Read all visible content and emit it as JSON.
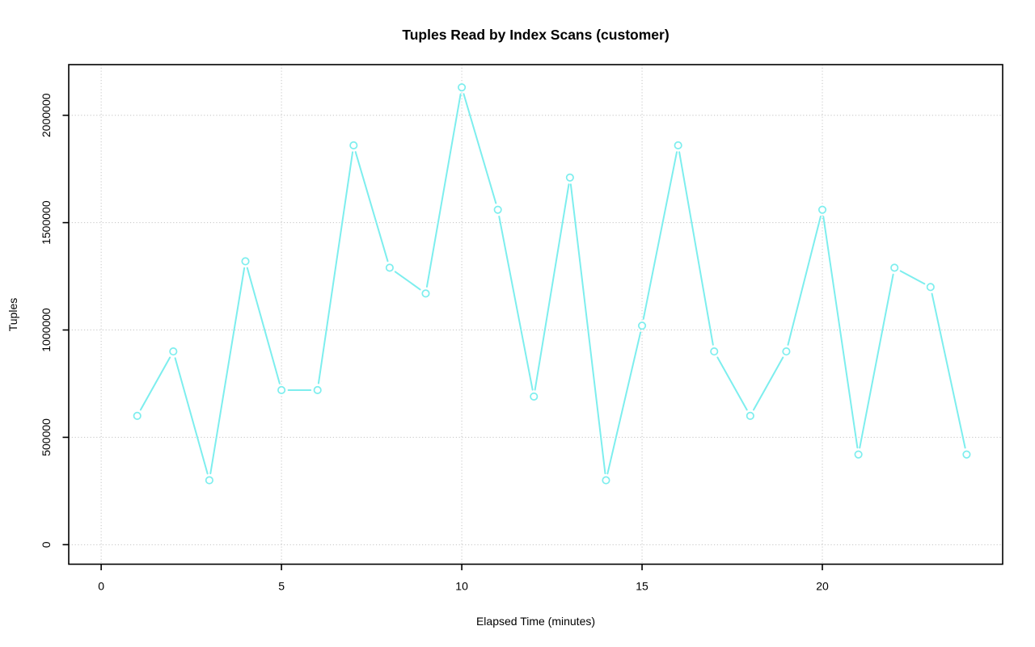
{
  "chart_data": {
    "type": "line",
    "title": "Tuples Read by Index Scans (customer)",
    "xlabel": "Elapsed Time (minutes)",
    "ylabel": "Tuples",
    "x": [
      1,
      2,
      3,
      4,
      5,
      6,
      7,
      8,
      9,
      10,
      11,
      12,
      13,
      14,
      15,
      16,
      17,
      18,
      19,
      20,
      21,
      22,
      23,
      24
    ],
    "values": [
      600000,
      900000,
      300000,
      1320000,
      720000,
      720000,
      1860000,
      1290000,
      1170000,
      2130000,
      1560000,
      690000,
      1710000,
      300000,
      1020000,
      1860000,
      900000,
      600000,
      900000,
      1560000,
      420000,
      1290000,
      1200000,
      420000
    ],
    "xticks": [
      0,
      5,
      10,
      15,
      20
    ],
    "yticks": [
      0,
      500000,
      1000000,
      1500000,
      2000000
    ],
    "xlim": [
      -0.9,
      25.0
    ],
    "ylim": [
      -91000,
      2236000
    ],
    "grid": "dotted",
    "legend": "none",
    "marker": "open-circle",
    "colors": {
      "line": "#7deeee",
      "grid": "#c4c4c4",
      "axis": "#000000",
      "background": "#ffffff"
    }
  }
}
